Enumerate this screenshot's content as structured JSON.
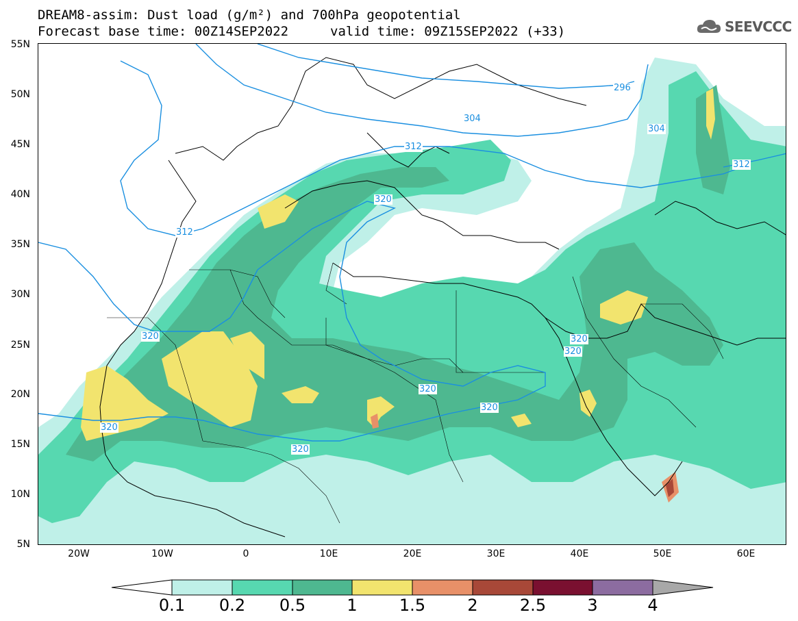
{
  "header": {
    "title_line1": "DREAM8-assim: Dust load (g/m²) and 700hPa geopotential",
    "title_line2_left": "Forecast base time: 00Z14SEP2022",
    "title_line2_right": "valid time: 09Z15SEP2022 (+33)",
    "logo_text": "SEEVCCC"
  },
  "axes": {
    "latitude_labels": [
      "55N",
      "50N",
      "45N",
      "40N",
      "35N",
      "30N",
      "25N",
      "20N",
      "15N",
      "10N",
      "5N"
    ],
    "longitude_labels": [
      "20W",
      "10W",
      "0",
      "10E",
      "20E",
      "30E",
      "40E",
      "50E",
      "60E"
    ]
  },
  "contour_labels": [
    "296",
    "304",
    "304",
    "312",
    "312",
    "312",
    "320",
    "320",
    "320",
    "320",
    "320",
    "320",
    "320",
    "320"
  ],
  "legend": {
    "levels": [
      "0.1",
      "0.2",
      "0.5",
      "1",
      "1.5",
      "2",
      "2.5",
      "3",
      "4"
    ],
    "colors": [
      "#bff0e8",
      "#57d8b0",
      "#4eb890",
      "#f2e46e",
      "#e89068",
      "#a84838",
      "#7a1030",
      "#8c6ca0",
      "#a8a8a8"
    ]
  },
  "colors": {
    "contour_line": "#1a8fe0",
    "coast_line": "#000000",
    "dust_light": "#bff0e8",
    "dust_mid": "#57d8b0",
    "dust_dark": "#4eb890",
    "dust_yellow": "#f2e46e",
    "dust_orange": "#e89068",
    "dust_red": "#a84838"
  }
}
